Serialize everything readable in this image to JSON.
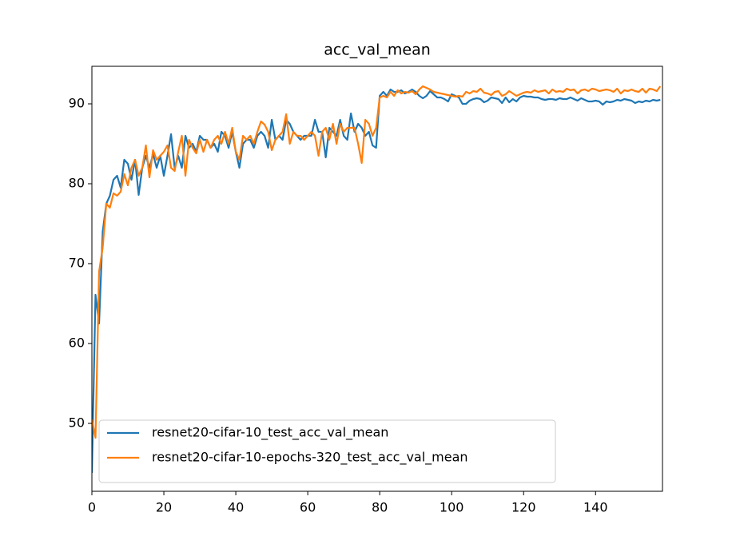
{
  "chart_data": {
    "type": "line",
    "title": "acc_val_mean",
    "x": [
      0,
      1,
      2,
      3,
      4,
      5,
      6,
      7,
      8,
      9,
      10,
      11,
      12,
      13,
      14,
      15,
      16,
      17,
      18,
      19,
      20,
      21,
      22,
      23,
      24,
      25,
      26,
      27,
      28,
      29,
      30,
      31,
      32,
      33,
      34,
      35,
      36,
      37,
      38,
      39,
      40,
      41,
      42,
      43,
      44,
      45,
      46,
      47,
      48,
      49,
      50,
      51,
      52,
      53,
      54,
      55,
      56,
      57,
      58,
      59,
      60,
      61,
      62,
      63,
      64,
      65,
      66,
      67,
      68,
      69,
      70,
      71,
      72,
      73,
      74,
      75,
      76,
      77,
      78,
      79,
      80,
      81,
      82,
      83,
      84,
      85,
      86,
      87,
      88,
      89,
      90,
      91,
      92,
      93,
      94,
      95,
      96,
      97,
      98,
      99,
      100,
      101,
      102,
      103,
      104,
      105,
      106,
      107,
      108,
      109,
      110,
      111,
      112,
      113,
      114,
      115,
      116,
      117,
      118,
      119,
      120,
      121,
      122,
      123,
      124,
      125,
      126,
      127,
      128,
      129,
      130,
      131,
      132,
      133,
      134,
      135,
      136,
      137,
      138,
      139,
      140,
      141,
      142,
      143,
      144,
      145,
      146,
      147,
      148,
      149,
      150,
      151,
      152,
      153,
      154,
      155,
      156,
      157,
      158
    ],
    "series": [
      {
        "name": "resnet20-cifar-10_test_acc_val_mean",
        "color": "#1f77b4",
        "values": [
          43.8,
          66.1,
          62.5,
          74,
          77.5,
          78.5,
          80.5,
          81,
          79.5,
          83,
          82.5,
          80.5,
          83,
          78.6,
          82,
          83.5,
          82,
          83.7,
          82,
          83.5,
          81,
          83.5,
          86.2,
          82,
          83.5,
          82,
          86,
          84.5,
          85,
          84,
          86,
          85.5,
          85.5,
          84.5,
          85,
          84,
          86.5,
          86,
          84.5,
          86.5,
          84,
          82,
          85,
          85.5,
          85.5,
          84.5,
          86,
          86.5,
          86,
          84.5,
          88,
          85.5,
          86,
          85.5,
          88,
          87.5,
          86.5,
          86,
          85.5,
          86,
          86,
          86,
          88,
          86.5,
          86.5,
          83.3,
          87,
          86.5,
          86,
          88,
          86,
          85.5,
          88.8,
          86.5,
          87.5,
          87,
          86,
          86.5,
          84.8,
          84.5,
          91,
          91.5,
          91,
          91.8,
          91.5,
          91.5,
          91.7,
          91.3,
          91.5,
          91.8,
          91.5,
          91,
          90.7,
          91,
          91.6,
          91.2,
          90.8,
          90.8,
          90.6,
          90.3,
          91.2,
          91,
          90.8,
          90,
          90,
          90.4,
          90.6,
          90.7,
          90.6,
          90.2,
          90.4,
          90.8,
          90.7,
          90.6,
          90.1,
          90.8,
          90.2,
          90.6,
          90.3,
          90.8,
          91,
          90.9,
          90.9,
          90.8,
          90.8,
          90.6,
          90.5,
          90.6,
          90.6,
          90.5,
          90.7,
          90.6,
          90.6,
          90.8,
          90.6,
          90.4,
          90.7,
          90.5,
          90.3,
          90.3,
          90.4,
          90.3,
          89.9,
          90.3,
          90.2,
          90.3,
          90.5,
          90.4,
          90.6,
          90.5,
          90.4,
          90.1,
          90.3,
          90.2,
          90.4,
          90.3,
          90.5,
          90.4,
          90.5
        ]
      },
      {
        "name": "resnet20-cifar-10-epochs-320_test_acc_val_mean",
        "color": "#ff7f0e",
        "values": [
          50.5,
          48.2,
          69,
          72,
          77.5,
          77,
          78.8,
          78.5,
          79,
          81.2,
          79.8,
          82,
          83,
          81,
          82,
          84.8,
          80.8,
          84.2,
          83,
          83.5,
          84,
          84.8,
          82,
          81.6,
          84,
          86,
          81,
          85.5,
          84.5,
          83.8,
          85.5,
          84,
          85.5,
          84.5,
          85.5,
          86,
          85,
          86.5,
          85,
          87,
          84,
          83,
          86,
          85.5,
          86,
          85,
          86.5,
          87.8,
          87.4,
          86.5,
          84.2,
          85.5,
          86,
          86.5,
          88.7,
          85,
          86.5,
          86,
          86,
          85.5,
          86,
          86.5,
          86,
          83.5,
          86.5,
          87,
          85.5,
          87.5,
          85,
          87.5,
          86.5,
          87,
          87,
          87,
          85,
          82.6,
          88,
          87.5,
          86,
          87,
          90.8,
          91,
          90.8,
          91.5,
          91,
          91.7,
          91.3,
          91.5,
          91.4,
          91.6,
          91.2,
          91.8,
          92.2,
          92,
          91.8,
          91.5,
          91.4,
          91.3,
          91.2,
          91.1,
          91,
          90.9,
          91,
          90.9,
          91.5,
          91.3,
          91.6,
          91.5,
          91.9,
          91.4,
          91.3,
          91.1,
          91.5,
          91.6,
          91,
          91.2,
          91.6,
          91.3,
          91,
          91.2,
          91.4,
          91.5,
          91.4,
          91.7,
          91.5,
          91.6,
          91.7,
          91.3,
          91.8,
          91.5,
          91.6,
          91.5,
          91.9,
          91.7,
          91.8,
          91.3,
          91.7,
          91.8,
          91.6,
          91.9,
          91.8,
          91.6,
          91.7,
          91.8,
          91.7,
          91.5,
          91.9,
          91.3,
          91.7,
          91.6,
          91.8,
          91.6,
          91.5,
          91.9,
          91.4,
          91.9,
          91.8,
          91.6,
          92.2
        ]
      }
    ],
    "xlim": [
      0,
      158.6
    ],
    "ylim": [
      41.5,
      94.7
    ],
    "xticks": [
      0,
      20,
      40,
      60,
      80,
      100,
      120,
      140
    ],
    "yticks": [
      50,
      60,
      70,
      80,
      90
    ],
    "grid": false,
    "legend": "lower left"
  }
}
